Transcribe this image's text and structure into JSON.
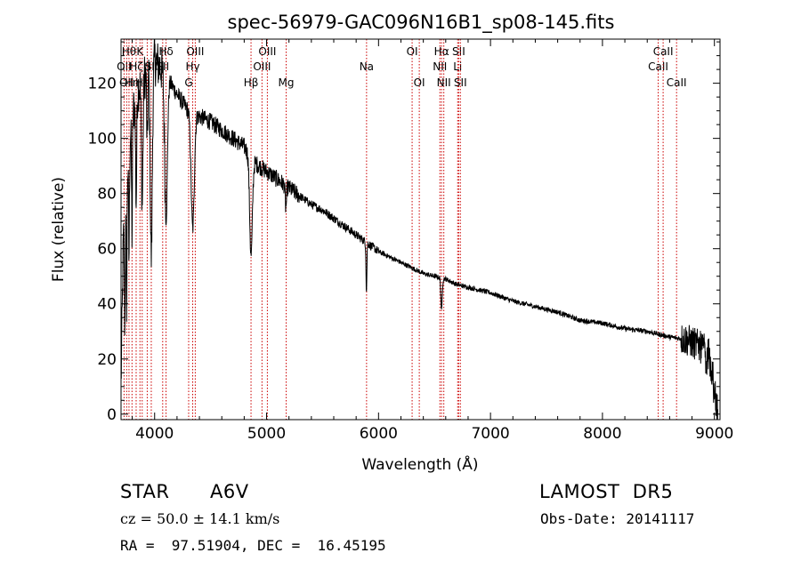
{
  "chart_data": {
    "type": "line",
    "title": "spec-56979-GAC096N16B1_sp08-145.fits",
    "xlabel": "Wavelength (Å)",
    "ylabel": "Flux (relative)",
    "xlim": [
      3700,
      9050
    ],
    "ylim": [
      -2,
      136
    ],
    "xticks": [
      4000,
      5000,
      6000,
      7000,
      8000,
      9000
    ],
    "yticks": [
      0,
      20,
      40,
      60,
      80,
      100,
      120
    ],
    "x_tick_labels": [
      "4000",
      "5000",
      "6000",
      "7000",
      "8000",
      "9000"
    ],
    "y_tick_labels": [
      "0",
      "20",
      "40",
      "60",
      "80",
      "100",
      "120"
    ],
    "line_color": "#000000",
    "marker_color": "#cc0000",
    "continuum": [
      [
        3700,
        10
      ],
      [
        3720,
        62
      ],
      [
        3760,
        92
      ],
      [
        3800,
        108
      ],
      [
        3850,
        118
      ],
      [
        3900,
        122
      ],
      [
        3950,
        126
      ],
      [
        4000,
        128
      ],
      [
        4050,
        126
      ],
      [
        4100,
        123
      ],
      [
        4200,
        116
      ],
      [
        4300,
        110
      ],
      [
        4400,
        108
      ],
      [
        4500,
        106
      ],
      [
        4600,
        103
      ],
      [
        4700,
        100
      ],
      [
        4800,
        97
      ],
      [
        4900,
        91
      ],
      [
        5000,
        88
      ],
      [
        5100,
        85
      ],
      [
        5200,
        82
      ],
      [
        5300,
        79
      ],
      [
        5400,
        76
      ],
      [
        5500,
        74
      ],
      [
        5600,
        71
      ],
      [
        5700,
        68
      ],
      [
        5800,
        65
      ],
      [
        5900,
        62
      ],
      [
        6000,
        59
      ],
      [
        6100,
        57
      ],
      [
        6200,
        55
      ],
      [
        6300,
        53
      ],
      [
        6400,
        51
      ],
      [
        6500,
        50
      ],
      [
        6600,
        49
      ],
      [
        6700,
        47
      ],
      [
        6800,
        46
      ],
      [
        6900,
        45
      ],
      [
        7000,
        44
      ],
      [
        7200,
        41
      ],
      [
        7400,
        39
      ],
      [
        7600,
        37
      ],
      [
        7800,
        34
      ],
      [
        8000,
        33
      ],
      [
        8200,
        31
      ],
      [
        8400,
        30
      ],
      [
        8600,
        28
      ],
      [
        8750,
        27
      ],
      [
        8850,
        25
      ],
      [
        8950,
        22
      ],
      [
        9000,
        10
      ],
      [
        9030,
        0
      ]
    ],
    "absorption": [
      [
        3734,
        40,
        4
      ],
      [
        3750,
        44,
        4
      ],
      [
        3771,
        40,
        4
      ],
      [
        3798,
        42,
        4
      ],
      [
        3835,
        38,
        5
      ],
      [
        3889,
        45,
        7
      ],
      [
        3934,
        28,
        5
      ],
      [
        3970,
        70,
        9
      ],
      [
        4102,
        52,
        12
      ],
      [
        4340,
        42,
        14
      ],
      [
        4861,
        36,
        12
      ],
      [
        5172,
        8,
        6
      ],
      [
        5892,
        18,
        4
      ],
      [
        6563,
        12,
        6
      ]
    ],
    "markers": [
      {
        "wl": 3727,
        "label": "OII",
        "row": 1
      },
      {
        "wl": 3750,
        "label": "OII",
        "row": 2
      },
      {
        "wl": 3771,
        "label": "Hθ",
        "row": 0
      },
      {
        "wl": 3798,
        "label": "Hη",
        "row": 2
      },
      {
        "wl": 3835,
        "label": "Hζ",
        "row": 1
      },
      {
        "wl": 3869,
        "label": "K",
        "row": 0
      },
      {
        "wl": 3889,
        "label": "Hε",
        "row": 2
      },
      {
        "wl": 3934,
        "label": "H",
        "row": 1
      },
      {
        "wl": 3970,
        "label": "SII",
        "row": 1
      },
      {
        "wl": 4072,
        "label": "SII",
        "row": 1
      },
      {
        "wl": 4102,
        "label": "Hδ",
        "row": 0
      },
      {
        "wl": 4304,
        "label": "G",
        "row": 2
      },
      {
        "wl": 4340,
        "label": "Hγ",
        "row": 1
      },
      {
        "wl": 4363,
        "label": "OIII",
        "row": 0
      },
      {
        "wl": 4861,
        "label": "Hβ",
        "row": 2
      },
      {
        "wl": 4959,
        "label": "OIII",
        "row": 1
      },
      {
        "wl": 5007,
        "label": "OIII",
        "row": 0
      },
      {
        "wl": 5175,
        "label": "Mg",
        "row": 2
      },
      {
        "wl": 5893,
        "label": "Na",
        "row": 1
      },
      {
        "wl": 6300,
        "label": "OI",
        "row": 0
      },
      {
        "wl": 6364,
        "label": "OI",
        "row": 2
      },
      {
        "wl": 6548,
        "label": "NII",
        "row": 1
      },
      {
        "wl": 6563,
        "label": "Hα",
        "row": 0
      },
      {
        "wl": 6583,
        "label": "NII",
        "row": 2
      },
      {
        "wl": 6707,
        "label": "Li",
        "row": 1
      },
      {
        "wl": 6716,
        "label": "SII",
        "row": 0
      },
      {
        "wl": 6731,
        "label": "SII",
        "row": 2
      },
      {
        "wl": 8498,
        "label": "CaII",
        "row": 1
      },
      {
        "wl": 8542,
        "label": "CaII",
        "row": 0
      },
      {
        "wl": 8662,
        "label": "CaII",
        "row": 2
      }
    ]
  },
  "info": {
    "object_class": "STAR",
    "subclass": "A6V",
    "survey": "LAMOST  DR5",
    "cz": "cz = 50.0 ± 14.1 km/s",
    "obs_date": "Obs-Date: 20141117",
    "coords": "RA =  97.51904, DEC =  16.45195"
  }
}
